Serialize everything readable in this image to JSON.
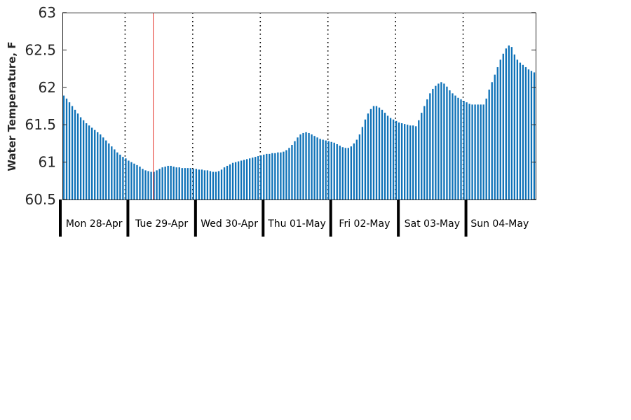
{
  "chart_data": {
    "type": "bar",
    "ylabel": "Water Temperature, F",
    "ylim": [
      60.5,
      63
    ],
    "yticks": [
      "60.5",
      "61",
      "61.5",
      "62",
      "62.5",
      "63"
    ],
    "ytick_values": [
      60.5,
      61,
      61.5,
      62,
      62.5,
      63
    ],
    "days": [
      "Mon 28-Apr",
      "Tue 29-Apr",
      "Wed 30-Apr",
      "Thu 01-May",
      "Fri 02-May",
      "Sat 03-May",
      "Sun 04-May"
    ],
    "bars_per_day": 24,
    "marker_hour": 10,
    "bar_color": "#0f72b8",
    "marker_color": "#e3332a",
    "grid": "vertical dotted day separators",
    "values": [
      61.89,
      61.85,
      61.8,
      61.75,
      61.7,
      61.65,
      61.6,
      61.56,
      61.52,
      61.49,
      61.46,
      61.43,
      61.4,
      61.37,
      61.33,
      61.29,
      61.25,
      61.21,
      61.17,
      61.13,
      61.1,
      61.07,
      61.05,
      61.02,
      61.0,
      60.98,
      60.96,
      60.94,
      60.91,
      60.89,
      60.88,
      60.87,
      60.87,
      60.89,
      60.91,
      60.93,
      60.94,
      60.95,
      60.95,
      60.94,
      60.93,
      60.93,
      60.92,
      60.92,
      60.92,
      60.92,
      60.91,
      60.91,
      60.9,
      60.9,
      60.89,
      60.89,
      60.88,
      60.87,
      60.87,
      60.88,
      60.9,
      60.93,
      60.95,
      60.97,
      60.99,
      61.0,
      61.01,
      61.02,
      61.03,
      61.04,
      61.05,
      61.06,
      61.07,
      61.08,
      61.09,
      61.1,
      61.11,
      61.11,
      61.12,
      61.12,
      61.13,
      61.13,
      61.14,
      61.16,
      61.19,
      61.23,
      61.28,
      61.33,
      61.37,
      61.39,
      61.4,
      61.39,
      61.37,
      61.35,
      61.33,
      61.31,
      61.3,
      61.29,
      61.28,
      61.27,
      61.26,
      61.24,
      61.22,
      61.2,
      61.19,
      61.19,
      61.21,
      61.25,
      61.3,
      61.37,
      61.47,
      61.57,
      61.65,
      61.71,
      61.75,
      61.75,
      61.73,
      61.7,
      61.66,
      61.62,
      61.59,
      61.57,
      61.55,
      61.53,
      61.52,
      61.51,
      61.5,
      61.49,
      61.49,
      61.48,
      61.56,
      61.66,
      61.75,
      61.84,
      61.92,
      61.98,
      62.02,
      62.05,
      62.07,
      62.05,
      62.01,
      61.96,
      61.92,
      61.89,
      61.86,
      61.84,
      61.82,
      61.8,
      61.78,
      61.77,
      61.77,
      61.77,
      61.77,
      61.77,
      61.85,
      61.97,
      62.07,
      62.17,
      62.27,
      62.37,
      62.45,
      62.52,
      62.56,
      62.54,
      62.44,
      62.37,
      62.33,
      62.3,
      62.27,
      62.24,
      62.22,
      62.2
    ]
  }
}
